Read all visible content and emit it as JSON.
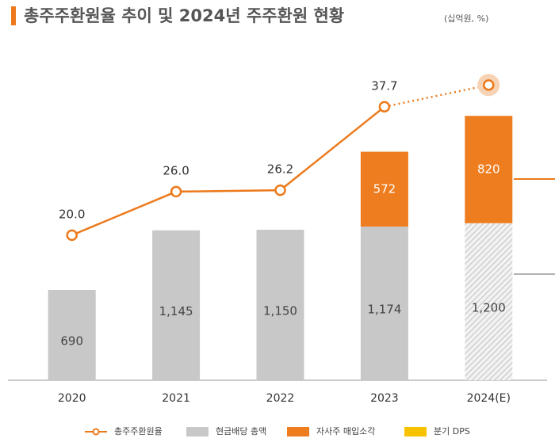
{
  "chart_data": {
    "type": "bar-line",
    "title": "총주주환원율 추이 및 2024년 주주환원 현황",
    "subtitle": "(십억원, %)",
    "categories": [
      "2020",
      "2021",
      "2022",
      "2023",
      "2024(E)"
    ],
    "ylim": [
      0,
      2300
    ],
    "y2lim": [
      0,
      41.5
    ],
    "series": [
      {
        "name": "총주주환원율",
        "color": "#ec7a1c",
        "axis": "y2",
        "kind": "line",
        "values": [
          20.0,
          26.0,
          26.2,
          37.7,
          40.7
        ],
        "value_labels": [
          "20.0",
          "26.0",
          "26.2",
          "37.7",
          null
        ]
      },
      {
        "name": "현금배당 총액",
        "color": "#c8c8c8",
        "kind": "bar",
        "values": [
          690,
          1145,
          1150,
          1174,
          1200
        ],
        "value_labels": [
          "690",
          "1,145",
          "1,150",
          "1,174",
          "1,200"
        ]
      },
      {
        "name": "자사주 매입소각",
        "color": "#ee7d1f",
        "kind": "bar",
        "values": [
          null,
          null,
          null,
          572,
          820
        ]
      },
      {
        "name": "분기 DPS",
        "color": "#f7c300",
        "kind": "bar",
        "values": [
          null,
          null,
          null,
          null,
          null
        ]
      }
    ]
  }
}
